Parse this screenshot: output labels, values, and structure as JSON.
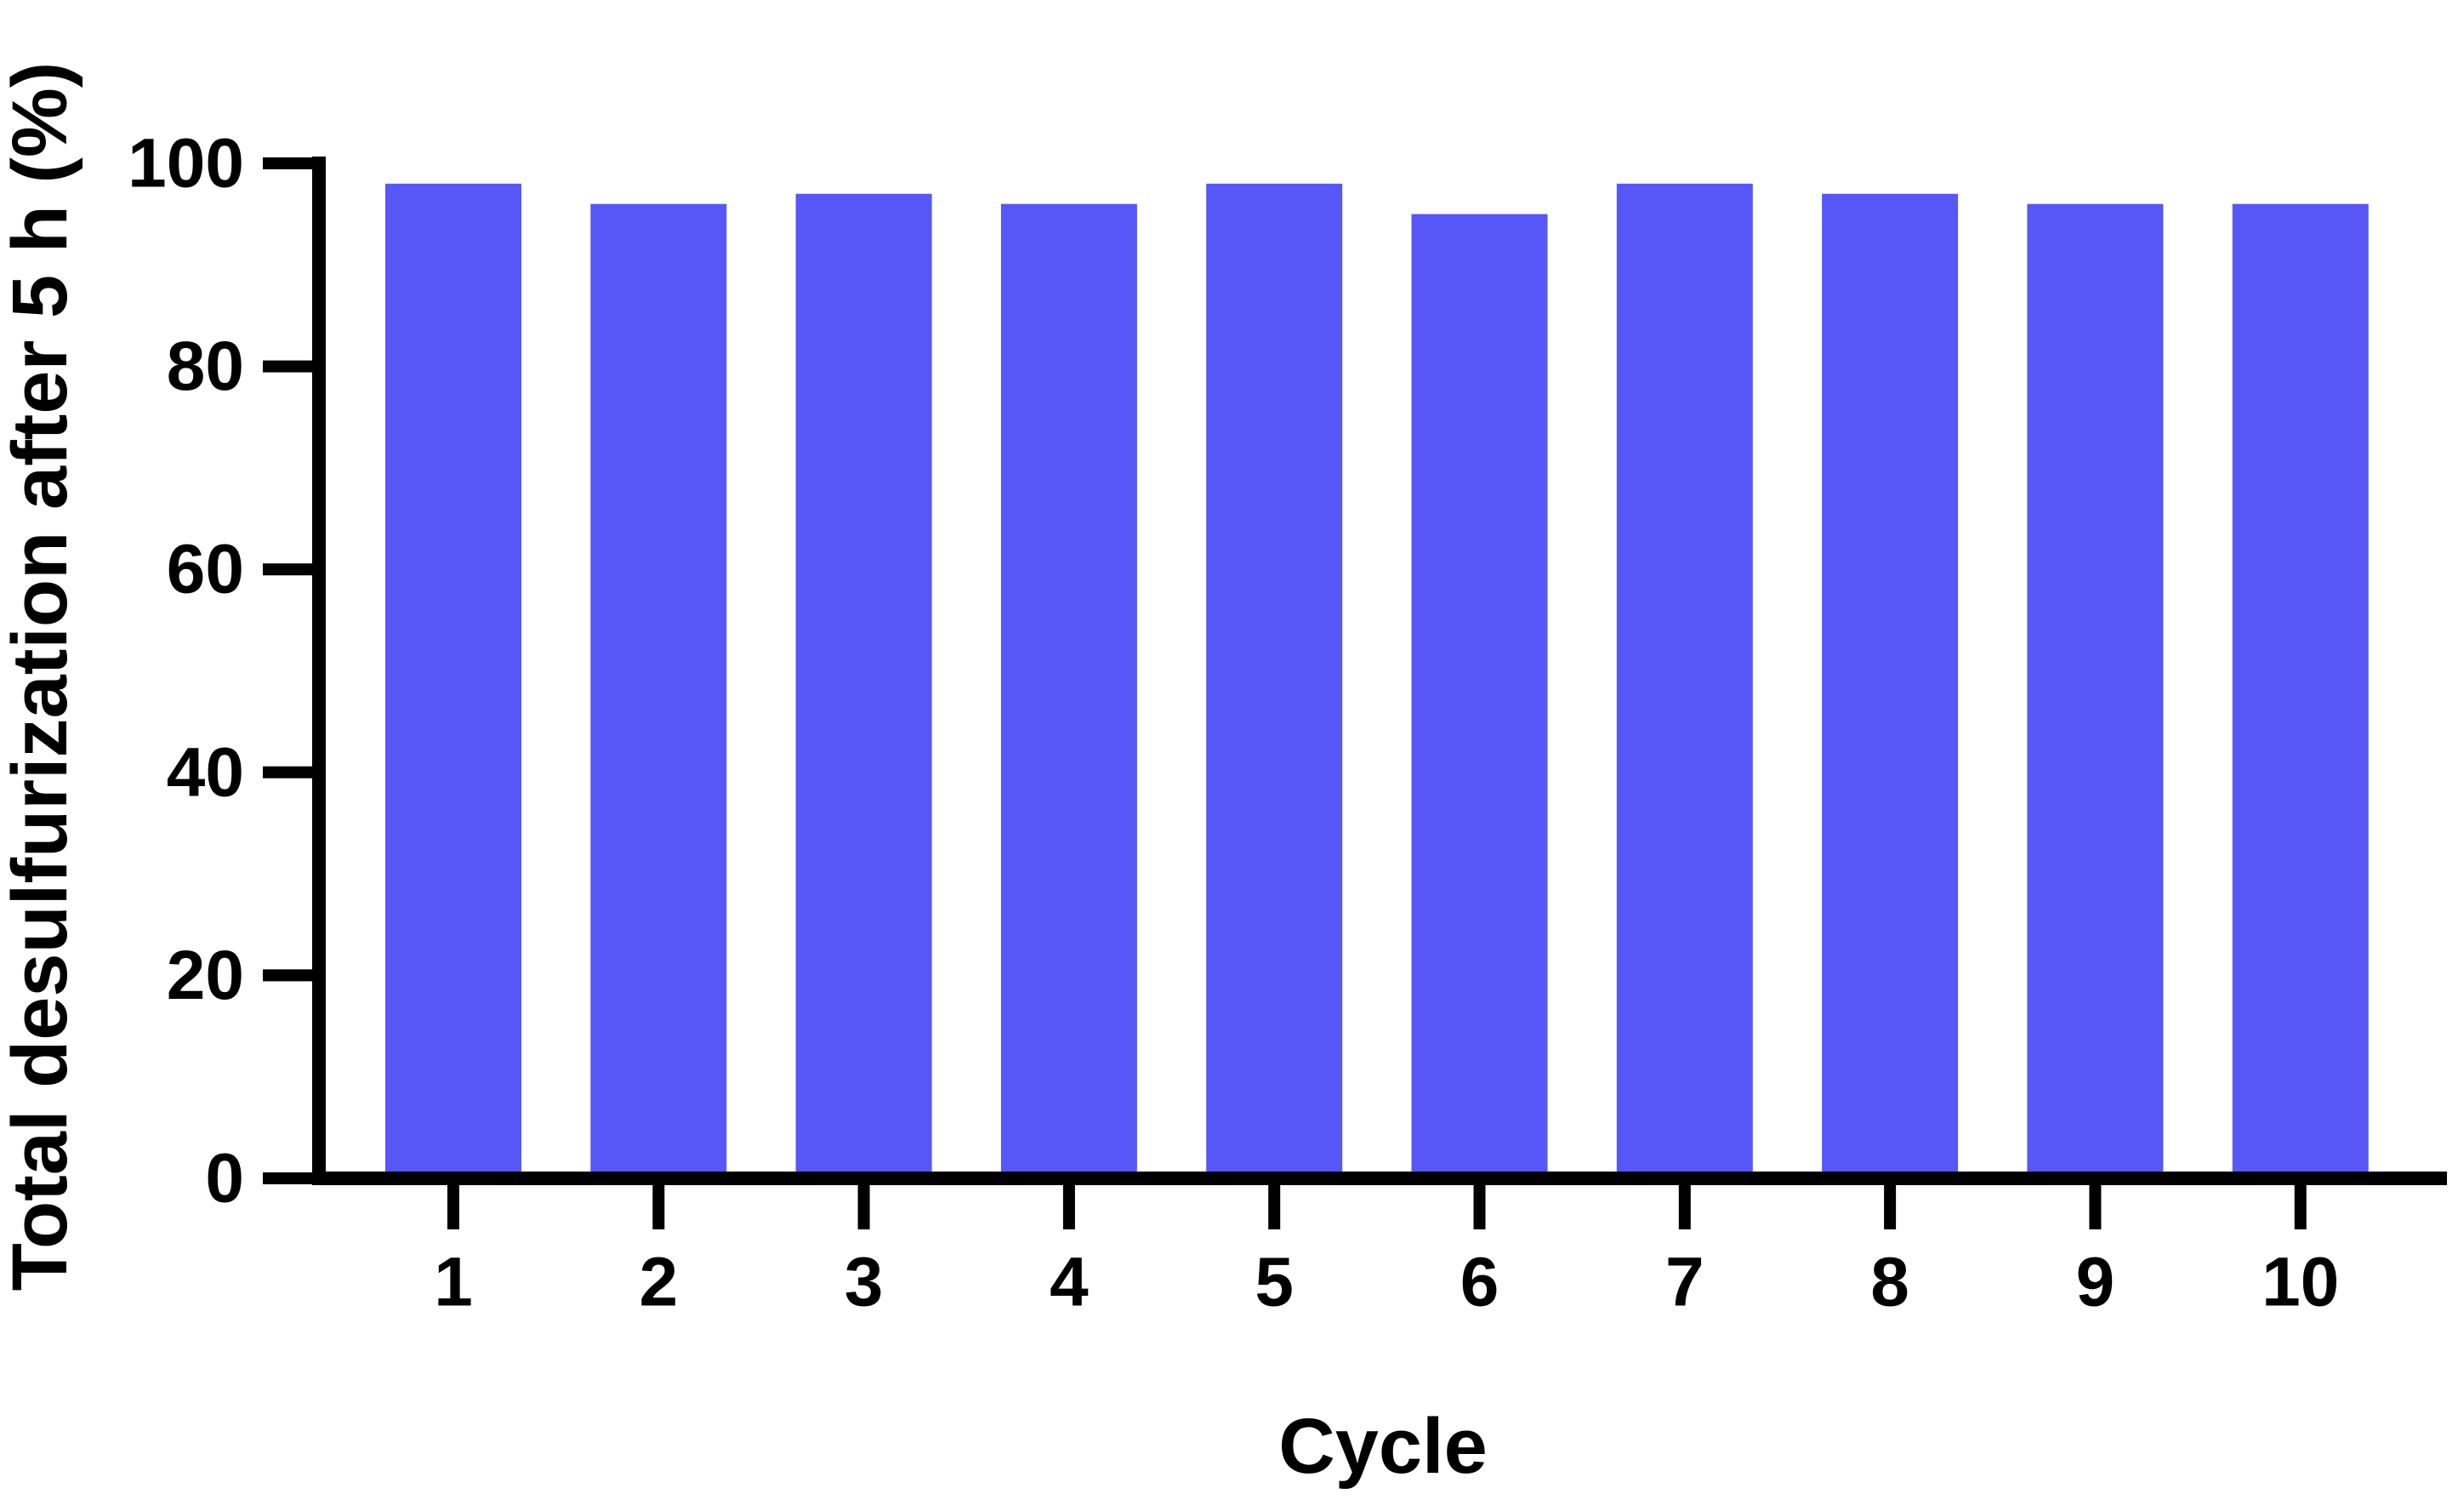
{
  "figure": {
    "background": "#ffffff",
    "axis_color": "#000000",
    "bar_color": "#5657F6",
    "text_color": "#000000"
  },
  "chart_data": {
    "type": "bar",
    "title": "",
    "xlabel": "Cycle",
    "ylabel": "Total desulfurization after 5 h (%)",
    "categories": [
      "1",
      "2",
      "3",
      "4",
      "5",
      "6",
      "7",
      "8",
      "9",
      "10"
    ],
    "values": [
      98,
      96,
      97,
      96,
      98,
      95,
      98,
      97,
      96,
      96
    ],
    "series_name": "Total desulfurization after 5 h (%)",
    "ylim": [
      0,
      100
    ],
    "yticks": [
      0,
      20,
      40,
      60,
      80,
      100
    ],
    "grid": false,
    "legend_position": "none"
  }
}
